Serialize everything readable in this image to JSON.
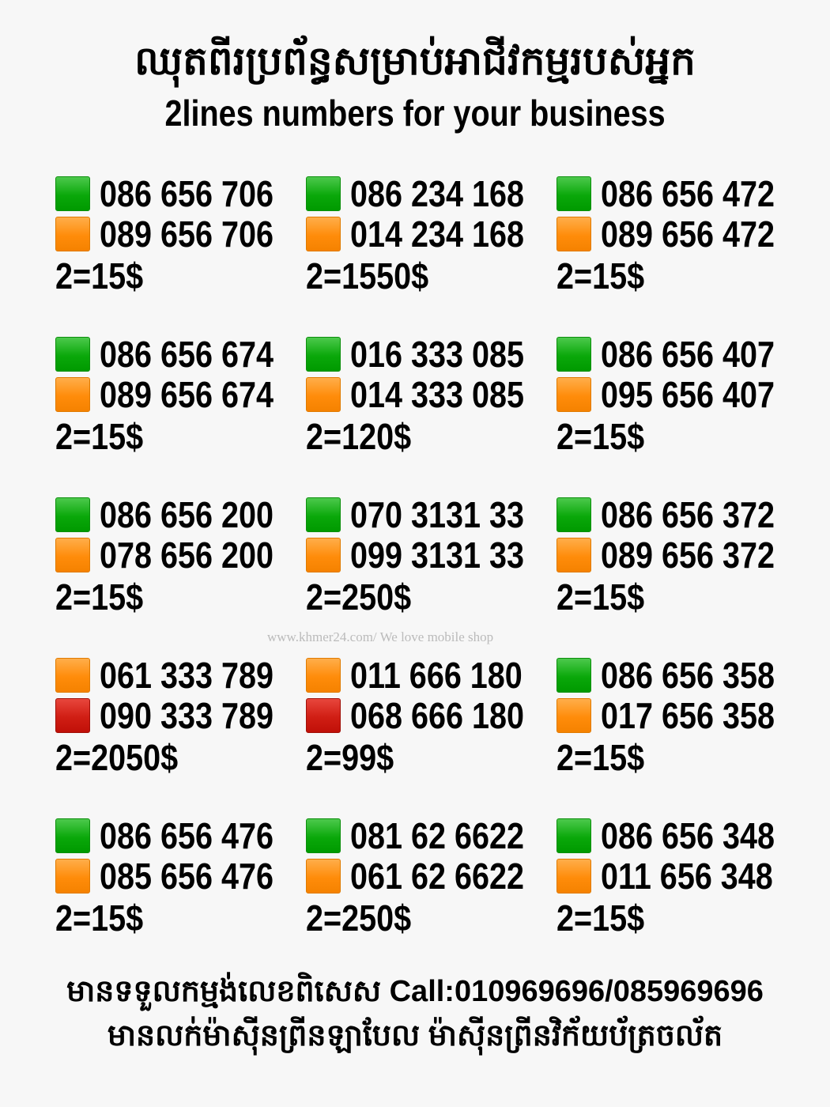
{
  "header": {
    "title_khmer": "ឈុតពីរប្រព័ន្ធសម្រាប់អាជីវកម្មរបស់អ្នក",
    "title_english": "2lines numbers for your business"
  },
  "colors": {
    "green": "#0aa80a",
    "orange": "#ff8c0a",
    "red": "#d01e14"
  },
  "offers": [
    {
      "lines": [
        {
          "color": "green",
          "number": "086 656 706"
        },
        {
          "color": "orange",
          "number": "089 656 706"
        }
      ],
      "price": "2=15$"
    },
    {
      "lines": [
        {
          "color": "green",
          "number": "086 234 168"
        },
        {
          "color": "orange",
          "number": "014 234 168"
        }
      ],
      "price": "2=1550$"
    },
    {
      "lines": [
        {
          "color": "green",
          "number": "086 656 472"
        },
        {
          "color": "orange",
          "number": "089 656 472"
        }
      ],
      "price": "2=15$"
    },
    {
      "lines": [
        {
          "color": "green",
          "number": "086 656 674"
        },
        {
          "color": "orange",
          "number": "089 656 674"
        }
      ],
      "price": "2=15$"
    },
    {
      "lines": [
        {
          "color": "green",
          "number": "016 333 085"
        },
        {
          "color": "orange",
          "number": "014 333 085"
        }
      ],
      "price": "2=120$"
    },
    {
      "lines": [
        {
          "color": "green",
          "number": "086 656 407"
        },
        {
          "color": "orange",
          "number": "095 656 407"
        }
      ],
      "price": "2=15$"
    },
    {
      "lines": [
        {
          "color": "green",
          "number": "086 656 200"
        },
        {
          "color": "orange",
          "number": "078 656 200"
        }
      ],
      "price": "2=15$"
    },
    {
      "lines": [
        {
          "color": "green",
          "number": "070 3131 33"
        },
        {
          "color": "orange",
          "number": "099 3131 33"
        }
      ],
      "price": "2=250$"
    },
    {
      "lines": [
        {
          "color": "green",
          "number": "086 656 372"
        },
        {
          "color": "orange",
          "number": "089 656 372"
        }
      ],
      "price": "2=15$"
    },
    {
      "lines": [
        {
          "color": "orange",
          "number": "061 333 789"
        },
        {
          "color": "red",
          "number": "090 333 789"
        }
      ],
      "price": "2=2050$"
    },
    {
      "lines": [
        {
          "color": "orange",
          "number": "011 666 180"
        },
        {
          "color": "red",
          "number": "068 666 180"
        }
      ],
      "price": "2=99$"
    },
    {
      "lines": [
        {
          "color": "green",
          "number": "086 656 358"
        },
        {
          "color": "orange",
          "number": "017 656 358"
        }
      ],
      "price": "2=15$"
    },
    {
      "lines": [
        {
          "color": "green",
          "number": "086 656 476"
        },
        {
          "color": "orange",
          "number": "085 656 476"
        }
      ],
      "price": "2=15$"
    },
    {
      "lines": [
        {
          "color": "green",
          "number": "081 62 6622"
        },
        {
          "color": "orange",
          "number": "061 62 6622"
        }
      ],
      "price": "2=250$"
    },
    {
      "lines": [
        {
          "color": "green",
          "number": "086 656 348"
        },
        {
          "color": "orange",
          "number": "011 656 348"
        }
      ],
      "price": "2=15$"
    }
  ],
  "watermark": "www.khmer24.com/ We love mobile shop",
  "footer": {
    "line1": "មានទទួលកម្មង់លេខពិសេស Call:010969696/085969696",
    "line2": "មានលក់ម៉ាស៊ីនព្រីនឡាបែល ម៉ាស៊ីនព្រីនវិក័យប័ត្រចល័ត"
  }
}
